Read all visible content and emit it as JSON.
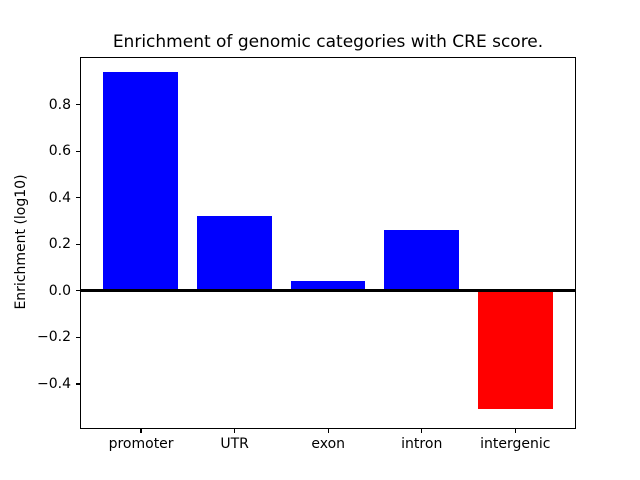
{
  "chart_data": {
    "type": "bar",
    "title": "Enrichment of genomic categories with CRE score.",
    "ylabel": "Enrichment (log10)",
    "xlabel": "",
    "categories": [
      "promoter",
      "UTR",
      "exon",
      "intron",
      "intergenic"
    ],
    "values": [
      0.94,
      0.32,
      0.04,
      0.26,
      -0.51
    ],
    "bar_colors": [
      "#0000ff",
      "#0000ff",
      "#0000ff",
      "#0000ff",
      "#ff0000"
    ],
    "positive_color": "#0000ff",
    "negative_color": "#ff0000",
    "ylim": [
      -0.59,
      1.0
    ],
    "yticks": {
      "values": [
        0.8,
        0.6,
        0.4,
        0.2,
        0.0,
        -0.2,
        -0.4
      ],
      "labels": [
        "0.8",
        "0.6",
        "0.4",
        "0.2",
        "0.0",
        "−0.2",
        "−0.4"
      ]
    },
    "zero_line": true,
    "grid": false,
    "legend": "none"
  }
}
